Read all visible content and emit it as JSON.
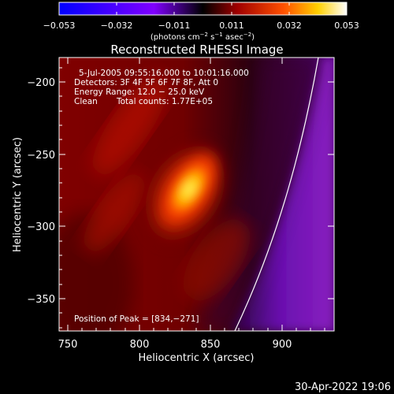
{
  "colorbar": {
    "ticks": [
      "−0.053",
      "−0.032",
      "−0.011",
      "0.011",
      "0.032",
      "0.053"
    ],
    "units_main": "(photons cm",
    "units_exp1": "−2",
    "units_mid": " s",
    "units_exp2": "−1",
    "units_end": " asec",
    "units_exp3": "−2",
    "units_close": ")",
    "range": [
      -0.053,
      0.053
    ]
  },
  "plot": {
    "title": "Reconstructed RHESSI Image",
    "xlabel": "Heliocentric X (arcsec)",
    "ylabel": "Heliocentric Y (arcsec)",
    "xticks": [
      "750",
      "800",
      "850",
      "900"
    ],
    "yticks": [
      "−200",
      "−250",
      "−300",
      "−350"
    ],
    "xrange": [
      743,
      938
    ],
    "yrange": [
      -375,
      -184
    ]
  },
  "annotations": {
    "time_range": "5-Jul-2005 09:55:16.000 to 10:01:16.000",
    "detectors": "Detectors: 3F 4F 5F 6F 7F 8F, Att 0",
    "energy": "Energy Range: 12.0 − 25.0 keV",
    "clean": "Clean",
    "counts": "Total counts: 1.77E+05",
    "peak": "Position of Peak = [834,−271]"
  },
  "footer": {
    "date": "30-Apr-2022 19:06"
  }
}
